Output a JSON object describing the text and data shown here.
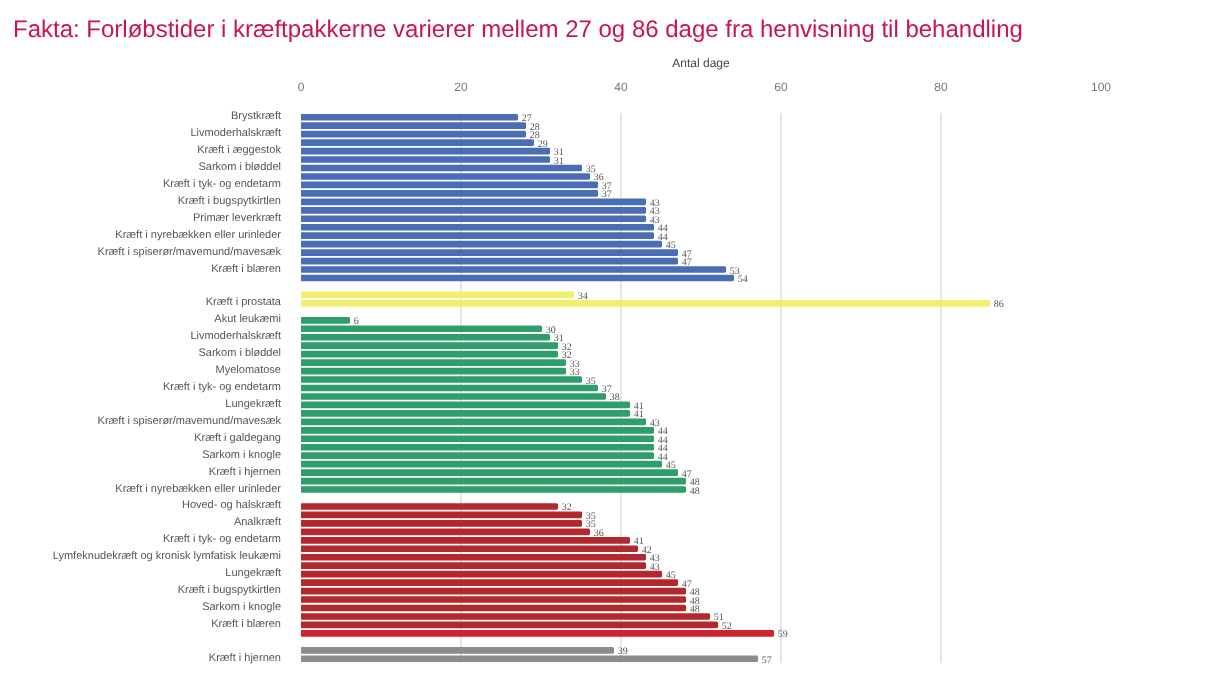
{
  "chart_data": {
    "type": "bar",
    "orientation": "horizontal",
    "title": "Fakta: Forløbstider i kræftpakkerne varierer mellem 27 og 86 dage fra henvisning til behandling",
    "xlabel": "Antal dage",
    "xlim": [
      0,
      100
    ],
    "xticks": [
      0,
      20,
      40,
      60,
      80,
      100
    ],
    "grid": "x",
    "data_labels": true,
    "categories": [
      "Brystkræft",
      null,
      "Livmoderhalskræft",
      null,
      "Kræft i æggestok",
      null,
      "Sarkom i bløddel",
      null,
      "Kræft i tyk- og endetarm",
      null,
      "Kræft i bugspytkirtlen",
      null,
      "Primær leverkræft",
      null,
      "Kræft i nyrebækken eller urinleder",
      null,
      "Kræft i spiserør/mavemund/mavesæk",
      null,
      "Kræft i blæren",
      null,
      null,
      null,
      "Kræft i prostata",
      null,
      "Akut leukæmi",
      null,
      "Livmoderhalskræft",
      null,
      "Sarkom i bløddel",
      null,
      "Myelomatose",
      null,
      "Kræft i tyk- og endetarm",
      null,
      "Lungekræft",
      null,
      "Kræft i spiserør/mavemund/mavesæk",
      null,
      "Kræft i galdegang",
      null,
      "Sarkom i knogle",
      null,
      "Kræft i hjernen",
      null,
      "Kræft i nyrebækken eller urinleder",
      null,
      "Hoved- og halskræft",
      null,
      "Analkræft",
      null,
      "Kræft i tyk- og endetarm",
      null,
      "Lymfeknudekræft og kronisk lymfatisk leukæmi",
      null,
      "Lungekræft",
      null,
      "Kræft i bugspytkirtlen",
      null,
      "Sarkom i knogle",
      null,
      "Kræft i blæren",
      null,
      null,
      null,
      "Kræft i hjernen"
    ],
    "values": [
      27,
      28,
      28,
      29,
      31,
      31,
      35,
      36,
      37,
      37,
      43,
      43,
      43,
      44,
      44,
      45,
      47,
      47,
      53,
      54,
      null,
      34,
      86,
      null,
      6,
      30,
      31,
      32,
      32,
      33,
      33,
      35,
      37,
      38,
      41,
      41,
      43,
      44,
      44,
      44,
      44,
      45,
      47,
      48,
      48,
      null,
      32,
      35,
      35,
      36,
      41,
      42,
      43,
      43,
      45,
      47,
      48,
      48,
      48,
      51,
      52,
      59,
      null,
      39,
      57
    ],
    "colors": [
      "#4a6db3",
      "#4a6db3",
      "#4a6db3",
      "#4a6db3",
      "#4a6db3",
      "#4a6db3",
      "#4a6db3",
      "#4a6db3",
      "#4a6db3",
      "#4a6db3",
      "#4a6db3",
      "#4a6db3",
      "#4a6db3",
      "#4a6db3",
      "#4a6db3",
      "#4a6db3",
      "#4a6db3",
      "#4a6db3",
      "#4a6db3",
      "#4a6db3",
      null,
      "#f2ee6e",
      "#f2ee6e",
      null,
      "#2f9e6b",
      "#2f9e6b",
      "#2f9e6b",
      "#2f9e6b",
      "#2f9e6b",
      "#2f9e6b",
      "#2f9e6b",
      "#2f9e6b",
      "#2f9e6b",
      "#2f9e6b",
      "#2f9e6b",
      "#2f9e6b",
      "#2f9e6b",
      "#2f9e6b",
      "#2f9e6b",
      "#2f9e6b",
      "#2f9e6b",
      "#2f9e6b",
      "#2f9e6b",
      "#2f9e6b",
      "#2f9e6b",
      null,
      "#b3282c",
      "#b3282c",
      "#b3282c",
      "#b3282c",
      "#b3282c",
      "#b3282c",
      "#b3282c",
      "#b3282c",
      "#b3282c",
      "#b3282c",
      "#b3282c",
      "#b3282c",
      "#b3282c",
      "#b3282c",
      "#b3282c",
      "#d0232f",
      null,
      "#8c8c8c",
      "#8c8c8c"
    ]
  }
}
